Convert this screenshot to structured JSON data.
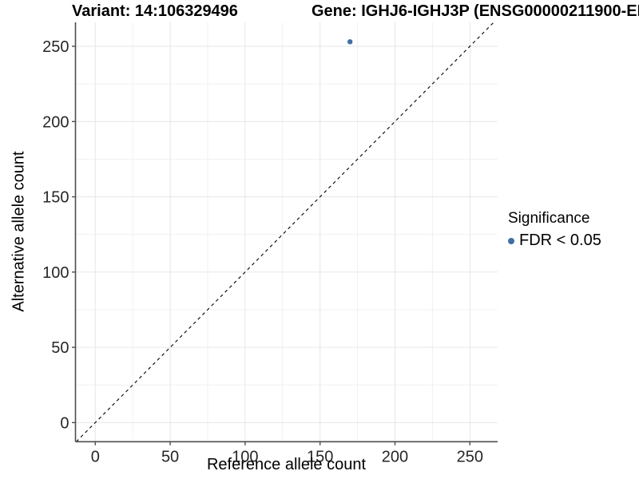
{
  "titles": {
    "variant": "Variant: 14:106329496",
    "gene": "Gene: IGHJ6-IGHJ3P (ENSG00000211900-EN"
  },
  "legend": {
    "title": "Significance",
    "items": [
      {
        "label": "FDR < 0.05",
        "color": "#3f6fa4"
      }
    ]
  },
  "colors": {
    "point": "#3f6fa4",
    "grid_major": "#e6e6e6",
    "grid_minor": "#f1f1f1",
    "axis_line": "#4d4d4d",
    "tick_text": "#262626",
    "identity_line": "#000000",
    "background": "#ffffff"
  },
  "chart_data": {
    "type": "scatter",
    "title": "Variant: 14:106329496  /  Gene: IGHJ6-IGHJ3P (ENSG00000211900-EN...)",
    "xlabel": "Reference allele count",
    "ylabel": "Alternative allele count",
    "xlim": [
      -13.2,
      268.5
    ],
    "ylim": [
      -12.7,
      265.9
    ],
    "x_ticks": [
      0,
      50,
      100,
      150,
      200,
      250
    ],
    "y_ticks": [
      0,
      50,
      100,
      150,
      200,
      250
    ],
    "minor_step": 25,
    "grid": true,
    "legend_position": "right",
    "series": [
      {
        "name": "FDR < 0.05",
        "points": [
          {
            "x": 170,
            "y": 253
          }
        ]
      }
    ],
    "identity_line": {
      "type": "y=x",
      "style": "dashed",
      "from": -12.7,
      "to": 265.9
    }
  }
}
